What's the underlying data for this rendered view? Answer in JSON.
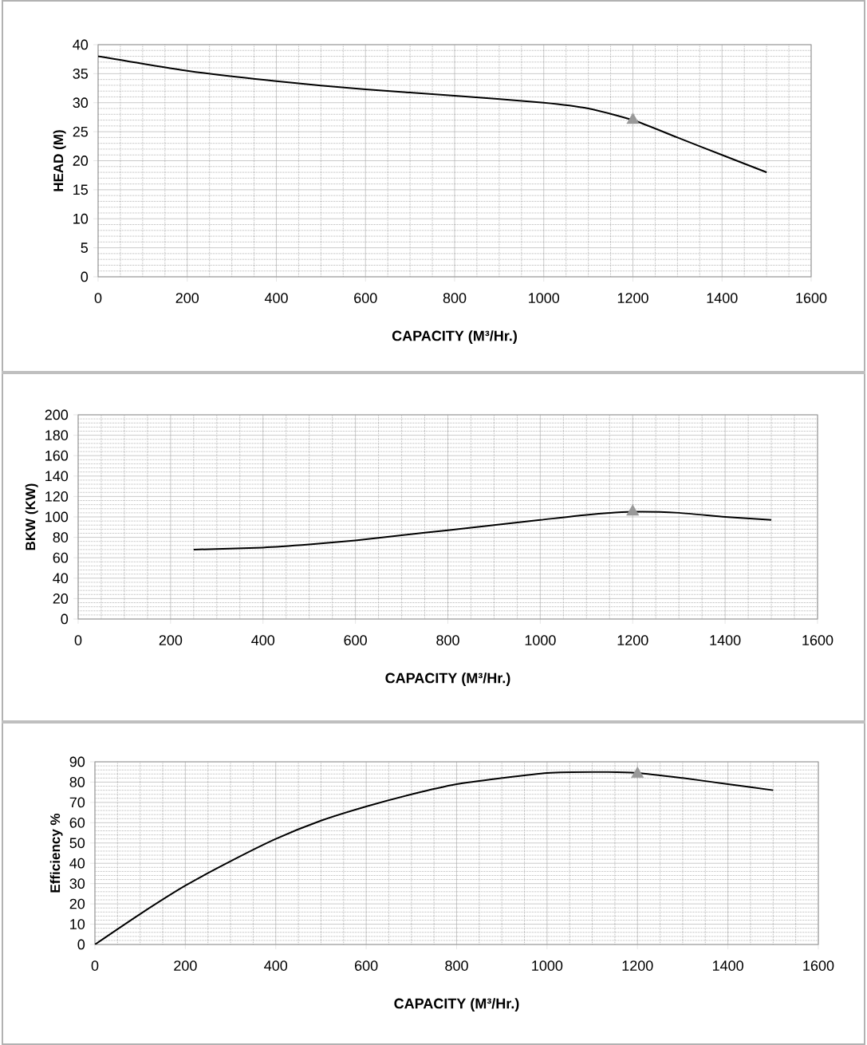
{
  "chart_data": [
    {
      "type": "line",
      "xlabel": "CAPACITY (M³/Hr.)",
      "ylabel": "HEAD (M)",
      "xlim": [
        0,
        1600
      ],
      "ylim": [
        0,
        40
      ],
      "xticks": [
        0,
        200,
        400,
        600,
        800,
        1000,
        1200,
        1400,
        1600
      ],
      "yticks": [
        0,
        5,
        10,
        15,
        20,
        25,
        30,
        35,
        40
      ],
      "grid": true,
      "series": [
        {
          "color": "#000000",
          "marker": "none",
          "x": [
            0,
            200,
            400,
            600,
            800,
            1000,
            1100,
            1200,
            1300,
            1400,
            1500
          ],
          "values": [
            38,
            35.5,
            33.7,
            32.3,
            31.2,
            30,
            29,
            27,
            24,
            21,
            18
          ]
        },
        {
          "type": "scatter",
          "color": "#999999",
          "marker": "triangle",
          "x": [
            1200
          ],
          "values": [
            27
          ]
        }
      ]
    },
    {
      "type": "line",
      "xlabel": "CAPACITY (M³/Hr.)",
      "ylabel": "BKW (KW)",
      "xlim": [
        0,
        1600
      ],
      "ylim": [
        0,
        200
      ],
      "xticks": [
        0,
        200,
        400,
        600,
        800,
        1000,
        1200,
        1400,
        1600
      ],
      "yticks": [
        0,
        20,
        40,
        60,
        80,
        100,
        120,
        140,
        160,
        180,
        200
      ],
      "grid": true,
      "series": [
        {
          "color": "#000000",
          "marker": "none",
          "x": [
            250,
            400,
            500,
            600,
            700,
            800,
            900,
            1000,
            1100,
            1200,
            1300,
            1400,
            1500
          ],
          "values": [
            68,
            70,
            73,
            77,
            82,
            87,
            92,
            97,
            102,
            105,
            104,
            100,
            97
          ]
        },
        {
          "type": "scatter",
          "color": "#999999",
          "marker": "triangle",
          "x": [
            1200
          ],
          "values": [
            105
          ]
        }
      ]
    },
    {
      "type": "line",
      "xlabel": "CAPACITY (M³/Hr.)",
      "ylabel": "Efficiency %",
      "xlim": [
        0,
        1600
      ],
      "ylim": [
        0,
        90
      ],
      "xticks": [
        0,
        200,
        400,
        600,
        800,
        1000,
        1200,
        1400,
        1600
      ],
      "yticks": [
        0,
        10,
        20,
        30,
        40,
        50,
        60,
        70,
        80,
        90
      ],
      "grid": true,
      "series": [
        {
          "color": "#000000",
          "marker": "none",
          "x": [
            0,
            100,
            200,
            300,
            400,
            500,
            600,
            700,
            800,
            900,
            1000,
            1100,
            1200,
            1300,
            1400,
            1500
          ],
          "values": [
            0,
            15,
            29,
            41,
            52,
            61,
            68,
            74,
            79,
            82,
            84.5,
            85,
            84.5,
            82,
            79,
            76
          ]
        },
        {
          "type": "scatter",
          "color": "#999999",
          "marker": "triangle",
          "x": [
            1200
          ],
          "values": [
            84
          ]
        }
      ]
    }
  ]
}
